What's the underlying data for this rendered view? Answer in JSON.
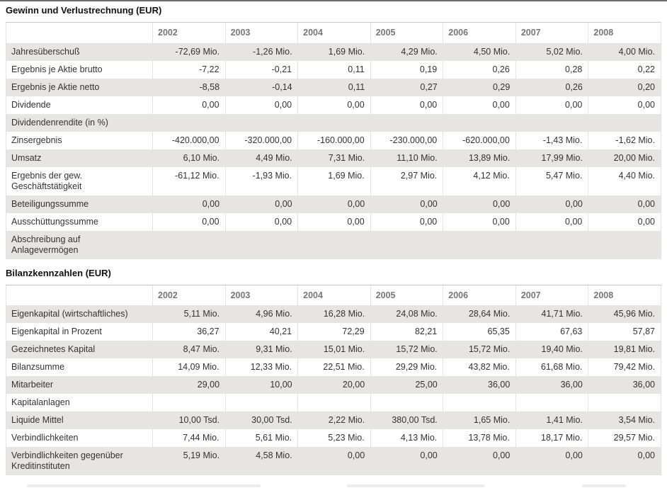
{
  "colors": {
    "text": "#333333",
    "title_text": "#111111",
    "year_text": "#767676",
    "row_alt": "#e6e5e3",
    "cell_border": "#e2e2e2",
    "header_border": "#c9c9c9",
    "rule": "#6b6b6b",
    "page_bg": "#ffffff"
  },
  "sections": [
    {
      "title": "Gewinn und Verlustrechnung (EUR)",
      "years": [
        "2002",
        "2003",
        "2004",
        "2005",
        "2006",
        "2007",
        "2008"
      ],
      "rows": [
        {
          "label": "Jahresüberschuß",
          "values": [
            "-72,69 Mio.",
            "-1,26 Mio.",
            "1,69 Mio.",
            "4,29 Mio.",
            "4,50 Mio.",
            "5,02 Mio.",
            "4,00 Mio."
          ]
        },
        {
          "label": "Ergebnis je Aktie brutto",
          "values": [
            "-7,22",
            "-0,21",
            "0,11",
            "0,19",
            "0,26",
            "0,28",
            "0,22"
          ]
        },
        {
          "label": "Ergebnis je Aktie netto",
          "values": [
            "-8,58",
            "-0,14",
            "0,11",
            "0,27",
            "0,29",
            "0,26",
            "0,20"
          ]
        },
        {
          "label": "Dividende",
          "values": [
            "0,00",
            "0,00",
            "0,00",
            "0,00",
            "0,00",
            "0,00",
            "0,00"
          ]
        },
        {
          "label": "Dividendenrendite (in %)",
          "values": [
            "",
            "",
            "",
            "",
            "",
            "",
            ""
          ]
        },
        {
          "label": "Zinsergebnis",
          "values": [
            "-420.000,00",
            "-320.000,00",
            "-160.000,00",
            "-230.000,00",
            "-620.000,00",
            "-1,43 Mio.",
            "-1,62 Mio."
          ]
        },
        {
          "label": "Umsatz",
          "values": [
            "6,10 Mio.",
            "4,49 Mio.",
            "7,31 Mio.",
            "11,10 Mio.",
            "13,89 Mio.",
            "17,99 Mio.",
            "20,00 Mio."
          ]
        },
        {
          "label": "Ergebnis der gew. Geschäftstätigkeit",
          "values": [
            "-61,12 Mio.",
            "-1,93 Mio.",
            "1,69 Mio.",
            "2,97 Mio.",
            "4,12 Mio.",
            "5,47 Mio.",
            "4,40 Mio."
          ]
        },
        {
          "label": "Beteiligungssumme",
          "values": [
            "0,00",
            "0,00",
            "0,00",
            "0,00",
            "0,00",
            "0,00",
            "0,00"
          ]
        },
        {
          "label": "Ausschüttungssumme",
          "values": [
            "0,00",
            "0,00",
            "0,00",
            "0,00",
            "0,00",
            "0,00",
            "0,00"
          ]
        },
        {
          "label": "Abschreibung auf Anlagevermögen",
          "values": [
            "",
            "",
            "",
            "",
            "",
            "",
            ""
          ]
        }
      ]
    },
    {
      "title": "Bilanzkennzahlen (EUR)",
      "years": [
        "2002",
        "2003",
        "2004",
        "2005",
        "2006",
        "2007",
        "2008"
      ],
      "rows": [
        {
          "label": "Eigenkapital (wirtschaftliches)",
          "values": [
            "5,11 Mio.",
            "4,96 Mio.",
            "16,28 Mio.",
            "24,08 Mio.",
            "28,64 Mio.",
            "41,71 Mio.",
            "45,96 Mio."
          ]
        },
        {
          "label": "Eigenkapital in Prozent",
          "values": [
            "36,27",
            "40,21",
            "72,29",
            "82,21",
            "65,35",
            "67,63",
            "57,87"
          ]
        },
        {
          "label": "Gezeichnetes Kapital",
          "values": [
            "8,47 Mio.",
            "9,31 Mio.",
            "15,01 Mio.",
            "15,72 Mio.",
            "15,72 Mio.",
            "19,40 Mio.",
            "19,81 Mio."
          ]
        },
        {
          "label": "Bilanzsumme",
          "values": [
            "14,09 Mio.",
            "12,33 Mio.",
            "22,51 Mio.",
            "29,29 Mio.",
            "43,82 Mio.",
            "61,68 Mio.",
            "79,42 Mio."
          ]
        },
        {
          "label": "Mitarbeiter",
          "values": [
            "29,00",
            "10,00",
            "20,00",
            "25,00",
            "36,00",
            "36,00",
            "36,00"
          ]
        },
        {
          "label": "Kapitalanlagen",
          "values": [
            "",
            "",
            "",
            "",
            "",
            "",
            ""
          ]
        },
        {
          "label": "Liquide Mittel",
          "values": [
            "10,00 Tsd.",
            "30,00 Tsd.",
            "2,22 Mio.",
            "380,00 Tsd.",
            "1,65 Mio.",
            "1,41 Mio.",
            "3,54 Mio."
          ]
        },
        {
          "label": "Verbindlichkeiten",
          "values": [
            "7,44 Mio.",
            "5,61 Mio.",
            "5,23 Mio.",
            "4,13 Mio.",
            "13,78 Mio.",
            "18,17 Mio.",
            "29,57 Mio."
          ]
        },
        {
          "label": "Verbindlichkeiten gegenüber Kreditinstituten",
          "values": [
            "5,19 Mio.",
            "4,58 Mio.",
            "0,00",
            "0,00",
            "0,00",
            "0,00",
            "0,00"
          ]
        }
      ]
    }
  ]
}
